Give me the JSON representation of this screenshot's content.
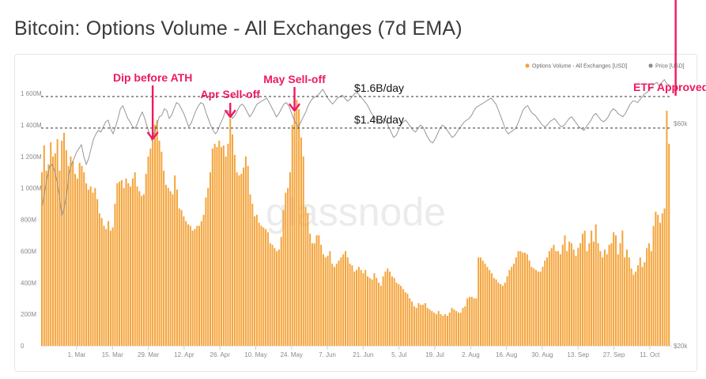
{
  "page": {
    "title": "Bitcoin: Options Volume - All Exchanges (7d EMA)"
  },
  "watermark": "glassnode",
  "colors": {
    "bar": "#f5a43b",
    "price": "#8c8c8c",
    "annotation": "#ee1a5e",
    "reference": "#333333"
  },
  "chart_data": {
    "type": "bar",
    "title": "Bitcoin: Options Volume - All Exchanges (7d EMA)",
    "legend_position": "top-right",
    "series": [
      {
        "name": "Options Volume - All Exchanges [USD]",
        "type": "bar",
        "axis": "left",
        "values": [
          1100,
          1270,
          1110,
          1150,
          1290,
          1200,
          1220,
          1310,
          1110,
          1300,
          1350,
          1240,
          1140,
          1200,
          1170,
          1090,
          1060,
          1160,
          1140,
          1100,
          1030,
          990,
          1010,
          970,
          1000,
          930,
          840,
          810,
          760,
          740,
          790,
          730,
          750,
          900,
          1030,
          1040,
          1050,
          1000,
          1060,
          1030,
          1010,
          1060,
          1100,
          1010,
          980,
          950,
          960,
          1090,
          1200,
          1250,
          1300,
          1400,
          1430,
          1300,
          1230,
          1110,
          1020,
          1000,
          980,
          960,
          1080,
          990,
          870,
          860,
          820,
          790,
          770,
          760,
          730,
          740,
          760,
          760,
          790,
          830,
          940,
          1000,
          1100,
          1250,
          1280,
          1260,
          1300,
          1260,
          1270,
          1200,
          1280,
          1440,
          1340,
          1210,
          1100,
          1080,
          1090,
          1130,
          1200,
          1140,
          960,
          900,
          820,
          830,
          780,
          760,
          750,
          740,
          720,
          650,
          640,
          620,
          600,
          610,
          690,
          860,
          970,
          1000,
          1100,
          1400,
          1480,
          1560,
          1500,
          1320,
          1200,
          880,
          840,
          710,
          650,
          650,
          700,
          700,
          640,
          580,
          560,
          570,
          600,
          520,
          500,
          520,
          540,
          560,
          580,
          600,
          560,
          520,
          510,
          470,
          480,
          500,
          480,
          460,
          480,
          440,
          430,
          420,
          460,
          430,
          400,
          380,
          440,
          470,
          490,
          470,
          440,
          430,
          400,
          390,
          380,
          360,
          340,
          330,
          300,
          280,
          250,
          240,
          270,
          260,
          260,
          270,
          240,
          230,
          220,
          210,
          200,
          220,
          200,
          190,
          200,
          190,
          210,
          240,
          230,
          220,
          210,
          210,
          240,
          250,
          300,
          310,
          310,
          300,
          300,
          560,
          560,
          540,
          520,
          500,
          480,
          460,
          430,
          420,
          400,
          390,
          380,
          400,
          440,
          480,
          500,
          520,
          560,
          600,
          600,
          590,
          590,
          580,
          540,
          500,
          490,
          480,
          470,
          470,
          500,
          540,
          560,
          600,
          620,
          640,
          600,
          600,
          580,
          640,
          700,
          600,
          660,
          650,
          610,
          570,
          620,
          650,
          710,
          730,
          600,
          650,
          730,
          660,
          770,
          650,
          600,
          560,
          610,
          580,
          640,
          650,
          720,
          700,
          580,
          650,
          730,
          560,
          610,
          560,
          490,
          450,
          470,
          510,
          560,
          500,
          530,
          620,
          650,
          600,
          760,
          850,
          830,
          780,
          840,
          870,
          1490,
          1280
        ],
        "note": ""
      },
      {
        "name": "Price [USD]",
        "type": "line",
        "axis": "right",
        "values": [
          40000,
          43000,
          46000,
          48500,
          49000,
          47500,
          45000,
          42000,
          38000,
          39500,
          42500,
          47000,
          49000,
          50500,
          52000,
          53000,
          54000,
          51000,
          49000,
          50500,
          53000,
          55500,
          57000,
          58000,
          57500,
          59000,
          60500,
          61000,
          58500,
          57000,
          59000,
          61500,
          64500,
          65500,
          63500,
          61500,
          60500,
          59000,
          58500,
          60000,
          62000,
          63500,
          61500,
          59000,
          57000,
          55000,
          57500,
          60000,
          62000,
          62500,
          64500,
          64000,
          61500,
          62500,
          64500,
          66500,
          66000,
          64500,
          63000,
          61000,
          59000,
          60000,
          62000,
          64000,
          65500,
          66500,
          66000,
          63500,
          61500,
          59500,
          58000,
          57000,
          58000,
          60000,
          61500,
          63500,
          64000,
          63000,
          61500,
          62500,
          64000,
          65500,
          66000,
          65000,
          63500,
          62000,
          63000,
          64500,
          66000,
          66500,
          67000,
          67500,
          68000,
          66500,
          65000,
          63500,
          62000,
          63000,
          64500,
          66000,
          66500,
          65500,
          63500,
          61500,
          60000,
          59000,
          60500,
          62000,
          63500,
          65500,
          67000,
          68000,
          68500,
          69000,
          70000,
          71000,
          69500,
          68000,
          67000,
          66000,
          67000,
          68000,
          68500,
          69000,
          68000,
          67000,
          67500,
          68500,
          69500,
          70000,
          69000,
          68000,
          67000,
          66000,
          64500,
          63000,
          62000,
          61000,
          60500,
          60000,
          61500,
          60500,
          59000,
          57500,
          56000,
          56500,
          58000,
          59500,
          60500,
          61000,
          60000,
          59000,
          58000,
          57500,
          58500,
          59500,
          59000,
          57500,
          56000,
          55000,
          54500,
          55500,
          57000,
          58500,
          59500,
          59000,
          58000,
          57000,
          56000,
          56500,
          57500,
          58500,
          59500,
          60500,
          61000,
          61500,
          62500,
          64000,
          65000,
          65500,
          66000,
          66500,
          67000,
          67500,
          68000,
          67000,
          66000,
          64000,
          62000,
          60000,
          58000,
          57000,
          57500,
          58000,
          58500,
          60000,
          62000,
          64000,
          65000,
          65500,
          64000,
          63000,
          62500,
          61500,
          60500,
          59500,
          59000,
          59500,
          60500,
          61000,
          61500,
          60500,
          59500,
          59000,
          59500,
          60500,
          61500,
          62000,
          61000,
          60000,
          59000,
          58500,
          58000,
          59000,
          60000,
          61000,
          62500,
          63000,
          62000,
          61000,
          60500,
          61000,
          62000,
          63500,
          64500,
          64000,
          63000,
          62500,
          62000,
          63000,
          64500,
          66000,
          67000,
          67000,
          66500,
          67500,
          68500,
          69500,
          70000,
          71000,
          72000,
          73000,
          73500,
          72000,
          73500,
          74500,
          73000,
          72500
        ],
        "note": ""
      }
    ],
    "x_tick_labels": [
      "1. Mar",
      "15. Mar",
      "29. Mar",
      "12. Apr",
      "26. Apr",
      "10. May",
      "24. May",
      "7. Jun",
      "21. Jun",
      "5. Jul",
      "19. Jul",
      "2. Aug",
      "16. Aug",
      "30. Aug",
      "13. Sep",
      "27. Sep",
      "11. Oct"
    ],
    "y_left": {
      "ticks": [
        "0",
        "200M",
        "400M",
        "600M",
        "800M",
        "1 000M",
        "1 200M",
        "1 400M",
        "1 600M"
      ],
      "min": 0,
      "max": 1600,
      "unit": "M USD"
    },
    "y_right": {
      "ticks": [
        "$20k",
        "$60k"
      ],
      "scale": "log"
    },
    "reference_lines": [
      {
        "label": "$1.6B/day",
        "value": 1580
      },
      {
        "label": "$1.4B/day",
        "value": 1380
      }
    ],
    "annotations": [
      {
        "label": "Dip before ATH",
        "bar_index": 50
      },
      {
        "label": "Apr Sell-off",
        "bar_index": 85
      },
      {
        "label": "May Sell-off",
        "bar_index": 114
      },
      {
        "label": "ETF Approved",
        "bar_index": 286
      }
    ],
    "grid": false
  }
}
